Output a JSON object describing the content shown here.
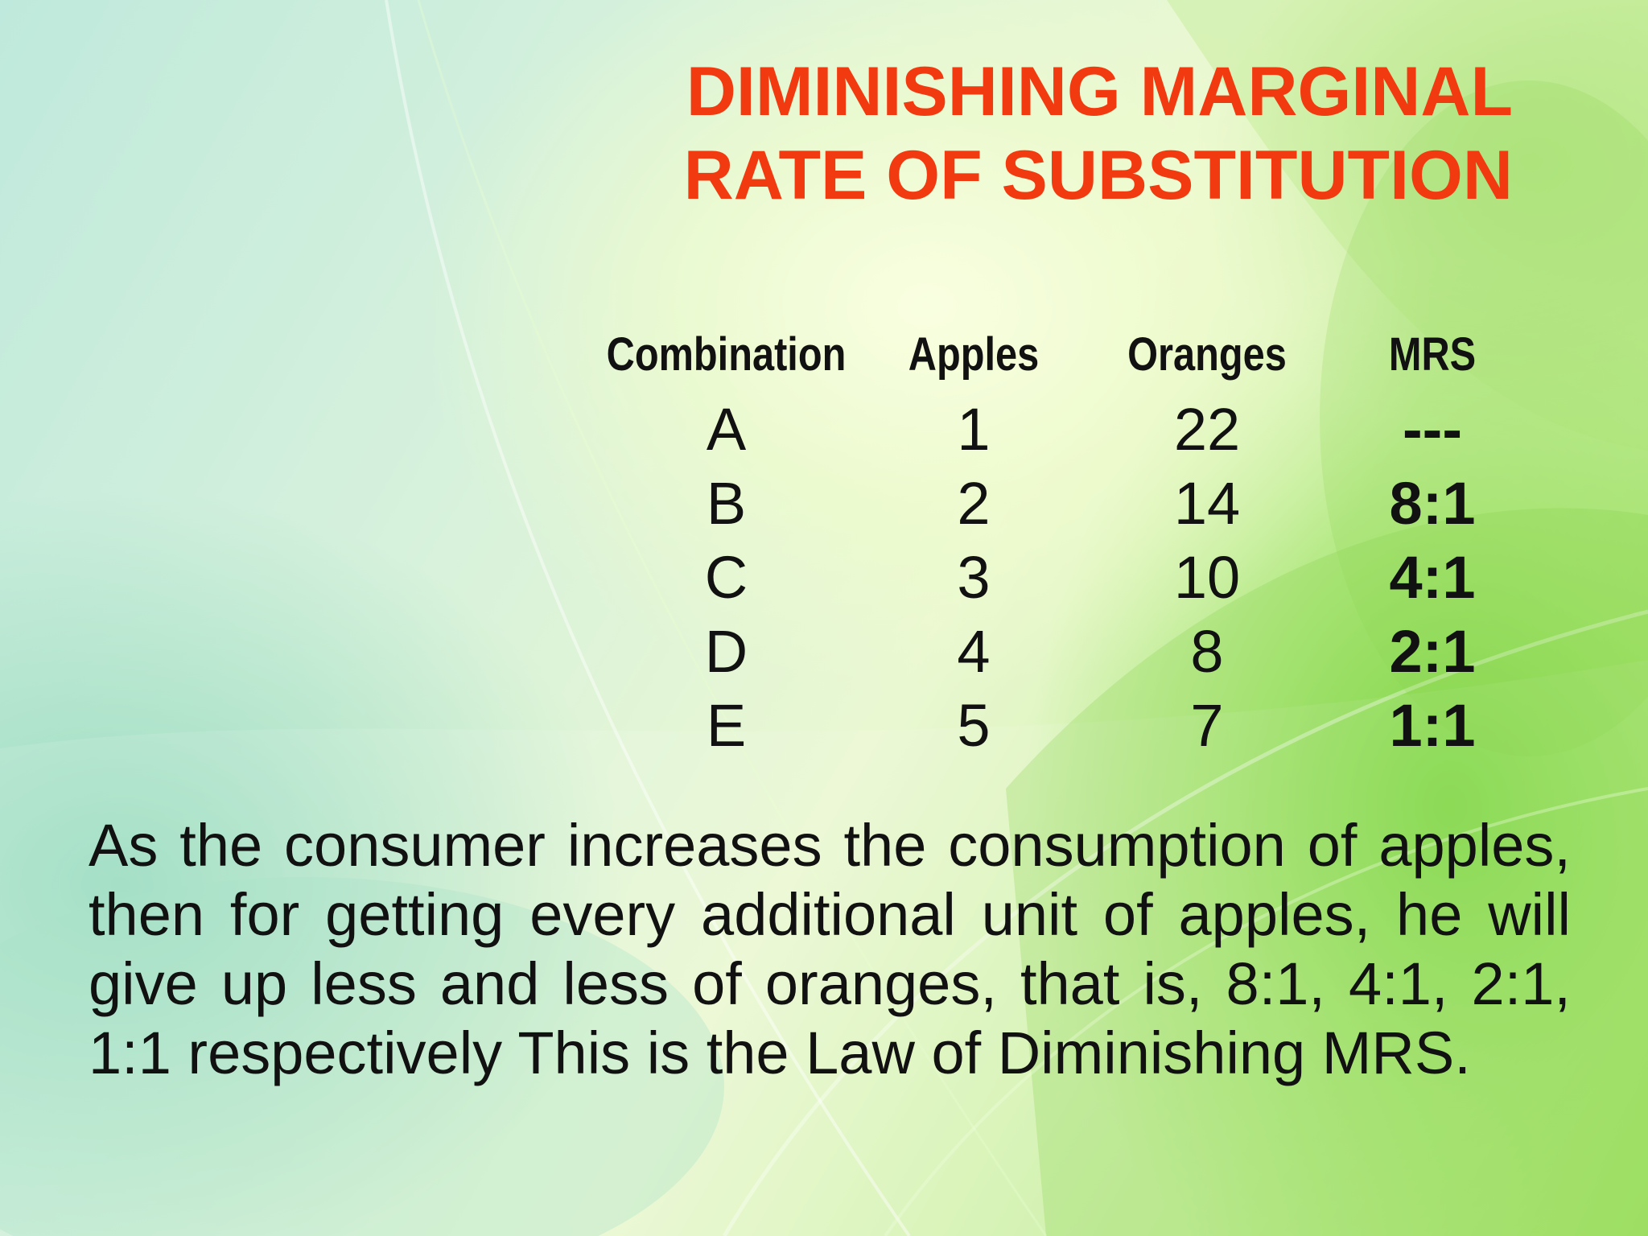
{
  "title": {
    "line1": "DIMINISHING MARGINAL",
    "line2": "RATE OF SUBSTITUTION"
  },
  "table": {
    "headers": [
      "Combination",
      "Apples",
      "Oranges",
      "MRS"
    ],
    "rows": [
      [
        "A",
        "1",
        "22",
        "---"
      ],
      [
        "B",
        "2",
        "14",
        "8:1"
      ],
      [
        "C",
        "3",
        "10",
        "4:1"
      ],
      [
        "D",
        "4",
        "8",
        "2:1"
      ],
      [
        "E",
        "5",
        "7",
        "1:1"
      ]
    ]
  },
  "paragraph": "As the consumer increases the consumption of apples, then for getting every additional unit of apples, he will give up less and less of oranges, that is, 8:1, 4:1, 2:1, 1:1 respectively This is the Law of Diminishing MRS.",
  "colors": {
    "title": "#f23a10",
    "text": "#111111",
    "background_accent": "#9fe05c"
  }
}
